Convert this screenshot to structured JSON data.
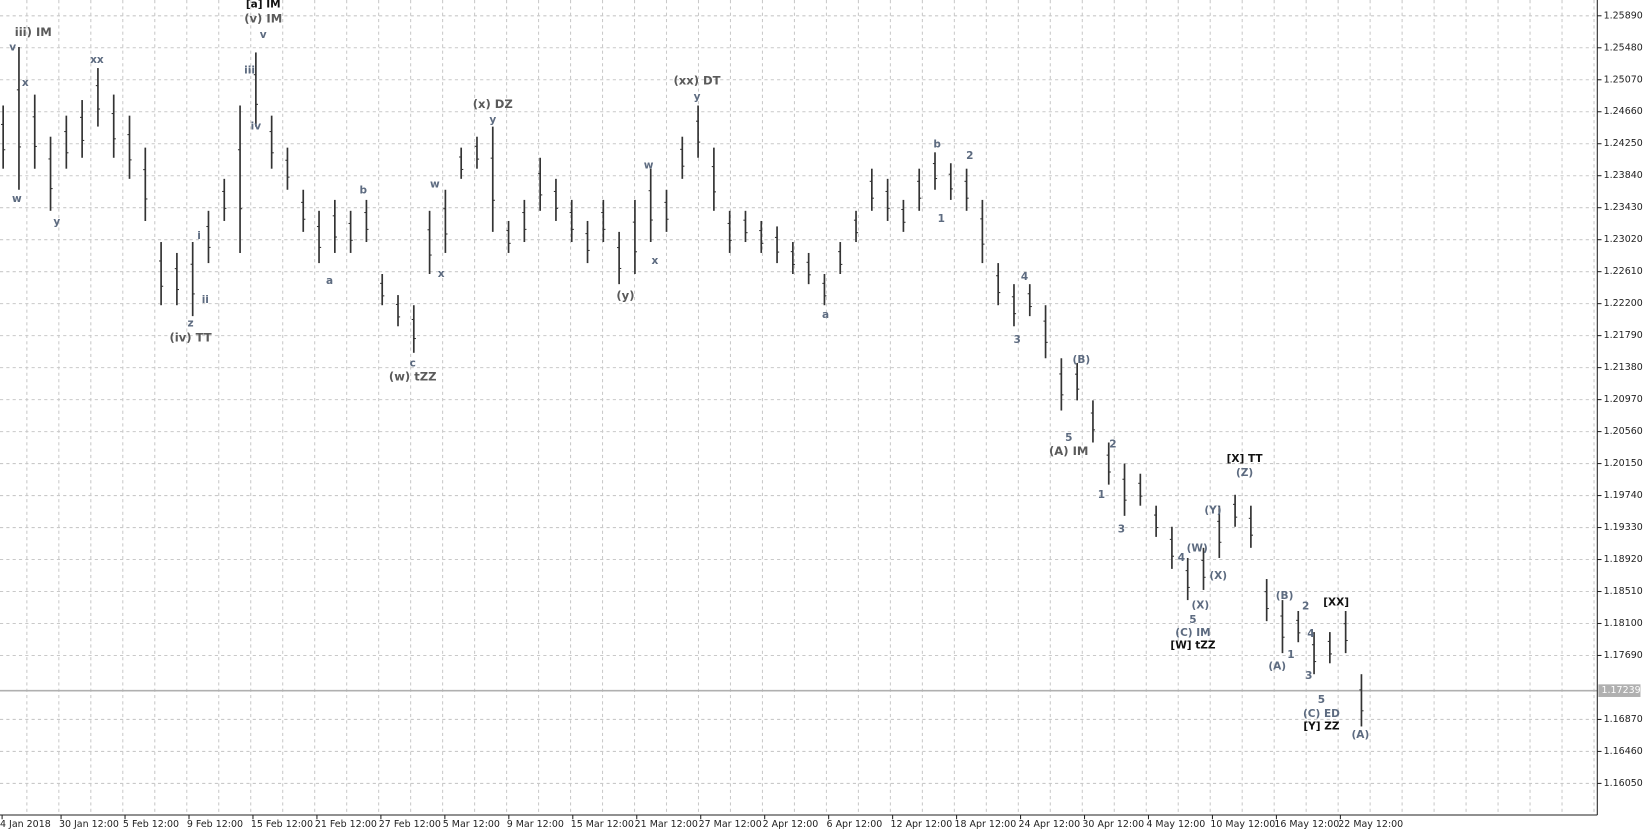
{
  "chart_data": {
    "type": "hl-bars",
    "color": "#333333",
    "grid": true,
    "ylim": [
      1.15645,
      1.26092
    ],
    "yticks": [
      {
        "value": 1.2589,
        "label": "1.25890"
      },
      {
        "value": 1.2548,
        "label": "1.25480"
      },
      {
        "value": 1.2507,
        "label": "1.25070"
      },
      {
        "value": 1.2466,
        "label": "1.24660"
      },
      {
        "value": 1.2425,
        "label": "1.24250"
      },
      {
        "value": 1.2384,
        "label": "1.23840"
      },
      {
        "value": 1.2343,
        "label": "1.23430"
      },
      {
        "value": 1.2302,
        "label": "1.23020"
      },
      {
        "value": 1.2261,
        "label": "1.22610"
      },
      {
        "value": 1.222,
        "label": "1.22200"
      },
      {
        "value": 1.2179,
        "label": "1.21790"
      },
      {
        "value": 1.2138,
        "label": "1.21380"
      },
      {
        "value": 1.2097,
        "label": "1.20970"
      },
      {
        "value": 1.2056,
        "label": "1.20560"
      },
      {
        "value": 1.2015,
        "label": "1.20150"
      },
      {
        "value": 1.1974,
        "label": "1.19740"
      },
      {
        "value": 1.1933,
        "label": "1.19330"
      },
      {
        "value": 1.1892,
        "label": "1.18920"
      },
      {
        "value": 1.1851,
        "label": "1.18510"
      },
      {
        "value": 1.181,
        "label": "1.18100"
      },
      {
        "value": 1.1769,
        "label": "1.17690"
      },
      {
        "value": 1.1687,
        "label": "1.16870"
      },
      {
        "value": 1.1646,
        "label": "1.16460"
      },
      {
        "value": 1.1605,
        "label": "1.16050"
      }
    ],
    "last_price": 1.17239,
    "xlabels": [
      "4 Jan 2018",
      "30 Jan 12:00",
      "5 Feb 12:00",
      "9 Feb 12:00",
      "15 Feb 12:00",
      "21 Feb 12:00",
      "27 Feb 12:00",
      "5 Mar 12:00",
      "9 Mar 12:00",
      "15 Mar 12:00",
      "21 Mar 12:00",
      "27 Mar 12:00",
      "2 Apr 12:00",
      "6 Apr 12:00",
      "12 Apr 12:00",
      "18 Apr 12:00",
      "24 Apr 12:00",
      "30 Apr 12:00",
      "4 May 12:00",
      "10 May 12:00",
      "16 May 12:00",
      "22 May 12:00"
    ],
    "bars": [
      [
        1.2474,
        1.2393
      ],
      [
        1.2549,
        1.2366
      ],
      [
        1.2488,
        1.2393
      ],
      [
        1.2434,
        1.2339
      ],
      [
        1.2461,
        1.2393
      ],
      [
        1.2481,
        1.2407
      ],
      [
        1.2522,
        1.2447
      ],
      [
        1.2488,
        1.2407
      ],
      [
        1.2461,
        1.238
      ],
      [
        1.242,
        1.2326
      ],
      [
        1.2299,
        1.2218
      ],
      [
        1.2285,
        1.2218
      ],
      [
        1.2299,
        1.2204
      ],
      [
        1.2339,
        1.2272
      ],
      [
        1.238,
        1.2326
      ],
      [
        1.2474,
        1.2285
      ],
      [
        1.2542,
        1.2447
      ],
      [
        1.2461,
        1.2393
      ],
      [
        1.242,
        1.2366
      ],
      [
        1.2366,
        1.2312
      ],
      [
        1.2339,
        1.2272
      ],
      [
        1.2353,
        1.2285
      ],
      [
        1.2339,
        1.2285
      ],
      [
        1.2353,
        1.2299
      ],
      [
        1.2258,
        1.2218
      ],
      [
        1.2231,
        1.2191
      ],
      [
        1.2218,
        1.2157
      ],
      [
        1.2339,
        1.2258
      ],
      [
        1.2366,
        1.2285
      ],
      [
        1.242,
        1.238
      ],
      [
        1.2434,
        1.2393
      ],
      [
        1.2447,
        1.2312
      ],
      [
        1.2326,
        1.2285
      ],
      [
        1.2353,
        1.2299
      ],
      [
        1.2407,
        1.2339
      ],
      [
        1.238,
        1.2326
      ],
      [
        1.2353,
        1.2299
      ],
      [
        1.2326,
        1.2272
      ],
      [
        1.2353,
        1.2299
      ],
      [
        1.2312,
        1.2245
      ],
      [
        1.2353,
        1.2258
      ],
      [
        1.2393,
        1.2299
      ],
      [
        1.2366,
        1.2312
      ],
      [
        1.2434,
        1.238
      ],
      [
        1.2474,
        1.2407
      ],
      [
        1.242,
        1.2339
      ],
      [
        1.2339,
        1.2285
      ],
      [
        1.2339,
        1.2299
      ],
      [
        1.2326,
        1.2285
      ],
      [
        1.2319,
        1.2272
      ],
      [
        1.2299,
        1.2258
      ],
      [
        1.2285,
        1.2245
      ],
      [
        1.2258,
        1.2218
      ],
      [
        1.2299,
        1.2258
      ],
      [
        1.2339,
        1.2299
      ],
      [
        1.2393,
        1.2339
      ],
      [
        1.238,
        1.2326
      ],
      [
        1.2353,
        1.2312
      ],
      [
        1.2393,
        1.2339
      ],
      [
        1.2414,
        1.2366
      ],
      [
        1.24,
        1.2353
      ],
      [
        1.2393,
        1.2339
      ],
      [
        1.2353,
        1.2272
      ],
      [
        1.2272,
        1.2218
      ],
      [
        1.2245,
        1.2191
      ],
      [
        1.2245,
        1.2204
      ],
      [
        1.2218,
        1.215
      ],
      [
        1.215,
        1.2083
      ],
      [
        1.2144,
        1.2096
      ],
      [
        1.2096,
        1.2042
      ],
      [
        1.2042,
        1.1988
      ],
      [
        1.2015,
        1.1948
      ],
      [
        1.2002,
        1.1961
      ],
      [
        1.1961,
        1.1921
      ],
      [
        1.1934,
        1.188
      ],
      [
        1.1894,
        1.184
      ],
      [
        1.1907,
        1.1853
      ],
      [
        1.1961,
        1.1894
      ],
      [
        1.1975,
        1.1934
      ],
      [
        1.1961,
        1.1907
      ],
      [
        1.1867,
        1.1813
      ],
      [
        1.184,
        1.1772
      ],
      [
        1.1826,
        1.1786
      ],
      [
        1.1799,
        1.1745
      ],
      [
        1.1799,
        1.1759
      ],
      [
        1.1826,
        1.1772
      ],
      [
        1.1745,
        1.1678
      ]
    ],
    "annotations": [
      "iii) IM",
      "v",
      "x",
      "w",
      "y",
      "xx",
      "i",
      "ii",
      "z",
      "(iv) TT",
      "iii",
      "iv",
      "[a] IM",
      "(v) IM",
      "v",
      "b",
      "a",
      "w",
      "x",
      "c",
      "(w) tZZ",
      "(x) DZ",
      "y",
      "w",
      "x",
      "(y)",
      "(xx) DT",
      "y",
      "a",
      "b",
      "1",
      "2",
      "4",
      "3",
      "(B)",
      "5",
      "(A) IM",
      "2",
      "1",
      "3",
      "[X] TT",
      "(Z)",
      "(Y)",
      "(W)",
      "(X)",
      "4",
      "(X)",
      "5",
      "(C) IM",
      "[W] tZZ",
      "(B)",
      "2",
      "1",
      "(A)",
      "4",
      "3",
      "5",
      "(C) ED",
      "[Y] ZZ",
      "[XX]",
      "(A)"
    ]
  }
}
